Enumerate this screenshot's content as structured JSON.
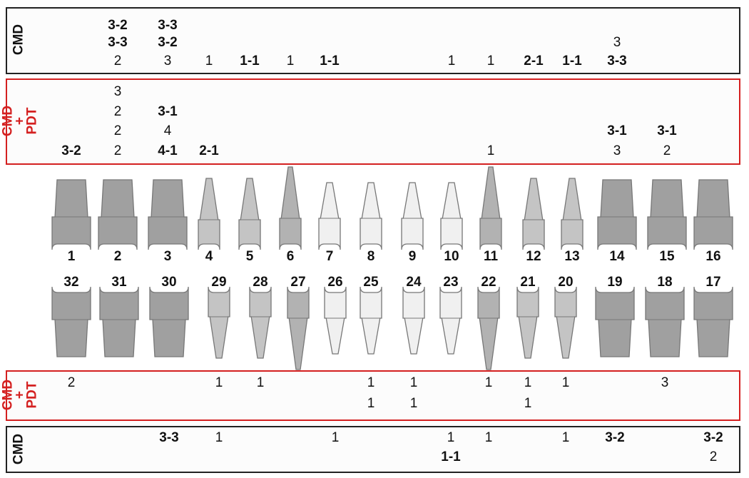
{
  "labels": {
    "cmd": "CMD",
    "cmd_pdt_line1": "CMD",
    "cmd_pdt_line2": "+",
    "cmd_pdt_line3": "PDT"
  },
  "colors": {
    "cmd_border": "#222222",
    "cmd_pdt_border": "#d42020",
    "cmd_pdt_label": "#d42020",
    "molar_fill": "#a0a0a0",
    "premolar_fill": "#c4c4c4",
    "canine_fill": "#b2b2b2",
    "incisor_fill": "#f0f0f0"
  },
  "upper": {
    "teeth": [
      {
        "number": "1",
        "type": "molar"
      },
      {
        "number": "2",
        "type": "molar"
      },
      {
        "number": "3",
        "type": "molar"
      },
      {
        "number": "4",
        "type": "premolar"
      },
      {
        "number": "5",
        "type": "premolar"
      },
      {
        "number": "6",
        "type": "canine"
      },
      {
        "number": "7",
        "type": "incisor"
      },
      {
        "number": "8",
        "type": "incisor"
      },
      {
        "number": "9",
        "type": "incisor"
      },
      {
        "number": "10",
        "type": "incisor"
      },
      {
        "number": "11",
        "type": "canine"
      },
      {
        "number": "12",
        "type": "premolar"
      },
      {
        "number": "13",
        "type": "premolar"
      },
      {
        "number": "14",
        "type": "molar"
      },
      {
        "number": "15",
        "type": "molar"
      },
      {
        "number": "16",
        "type": "molar"
      }
    ],
    "cmd": [
      [],
      [
        {
          "text": "3-2",
          "bold": true
        },
        {
          "text": "3-3",
          "bold": true
        },
        {
          "text": "2",
          "bold": false
        }
      ],
      [
        {
          "text": "3-3",
          "bold": true
        },
        {
          "text": "3-2",
          "bold": true
        },
        {
          "text": "3",
          "bold": false
        }
      ],
      [
        {
          "text": "1",
          "bold": false
        }
      ],
      [
        {
          "text": "1-1",
          "bold": true
        }
      ],
      [
        {
          "text": "1",
          "bold": false
        }
      ],
      [
        {
          "text": "1-1",
          "bold": true
        }
      ],
      [],
      [],
      [
        {
          "text": "1",
          "bold": false
        }
      ],
      [
        {
          "text": "1",
          "bold": false
        }
      ],
      [
        {
          "text": "2-1",
          "bold": true
        }
      ],
      [
        {
          "text": "1-1",
          "bold": true
        }
      ],
      [
        {
          "text": "3",
          "bold": false
        },
        {
          "text": "3-3",
          "bold": true
        }
      ],
      [],
      []
    ],
    "cmd_pdt": [
      [
        {
          "text": "3-2",
          "bold": true
        }
      ],
      [
        {
          "text": "3",
          "bold": false
        },
        {
          "text": "2",
          "bold": false
        },
        {
          "text": "2",
          "bold": false
        },
        {
          "text": "2",
          "bold": false
        }
      ],
      [
        {
          "text": "3-1",
          "bold": true
        },
        {
          "text": "4",
          "bold": false
        },
        {
          "text": "4-1",
          "bold": true
        }
      ],
      [
        {
          "text": "2-1",
          "bold": true
        }
      ],
      [],
      [],
      [],
      [],
      [],
      [],
      [
        {
          "text": "1",
          "bold": false
        }
      ],
      [],
      [],
      [
        {
          "text": "3-1",
          "bold": true
        },
        {
          "text": "3",
          "bold": false
        }
      ],
      [
        {
          "text": "3-1",
          "bold": true
        },
        {
          "text": "2",
          "bold": false
        }
      ],
      []
    ]
  },
  "lower": {
    "teeth": [
      {
        "number": "32",
        "type": "molar"
      },
      {
        "number": "31",
        "type": "molar"
      },
      {
        "number": "30",
        "type": "molar"
      },
      {
        "number": "29",
        "type": "premolar"
      },
      {
        "number": "28",
        "type": "premolar"
      },
      {
        "number": "27",
        "type": "canine"
      },
      {
        "number": "26",
        "type": "incisor"
      },
      {
        "number": "25",
        "type": "incisor"
      },
      {
        "number": "24",
        "type": "incisor"
      },
      {
        "number": "23",
        "type": "incisor"
      },
      {
        "number": "22",
        "type": "canine"
      },
      {
        "number": "21",
        "type": "premolar"
      },
      {
        "number": "20",
        "type": "premolar"
      },
      {
        "number": "19",
        "type": "molar"
      },
      {
        "number": "18",
        "type": "molar"
      },
      {
        "number": "17",
        "type": "molar"
      }
    ],
    "cmd_pdt": [
      [
        {
          "text": "2",
          "bold": false
        }
      ],
      [],
      [],
      [
        {
          "text": "1",
          "bold": false
        }
      ],
      [
        {
          "text": "1",
          "bold": false
        }
      ],
      [],
      [],
      [
        {
          "text": "1",
          "bold": false
        },
        {
          "text": "1",
          "bold": false
        }
      ],
      [
        {
          "text": "1",
          "bold": false
        },
        {
          "text": "1",
          "bold": false
        }
      ],
      [],
      [
        {
          "text": "1",
          "bold": false
        }
      ],
      [
        {
          "text": "1",
          "bold": false
        },
        {
          "text": "1",
          "bold": false
        }
      ],
      [
        {
          "text": "1",
          "bold": false
        }
      ],
      [],
      [
        {
          "text": "3",
          "bold": false
        }
      ],
      []
    ],
    "cmd": [
      [],
      [],
      [
        {
          "text": "3-3",
          "bold": true
        }
      ],
      [
        {
          "text": "1",
          "bold": false
        }
      ],
      [],
      [],
      [
        {
          "text": "1",
          "bold": false
        }
      ],
      [],
      [],
      [
        {
          "text": "1",
          "bold": false
        },
        {
          "text": "1-1",
          "bold": true
        }
      ],
      [
        {
          "text": "1",
          "bold": false
        }
      ],
      [],
      [
        {
          "text": "1",
          "bold": false
        }
      ],
      [
        {
          "text": "3-2",
          "bold": true
        }
      ],
      [],
      [
        {
          "text": "3-2",
          "bold": true
        },
        {
          "text": "2",
          "bold": false
        }
      ]
    ]
  }
}
